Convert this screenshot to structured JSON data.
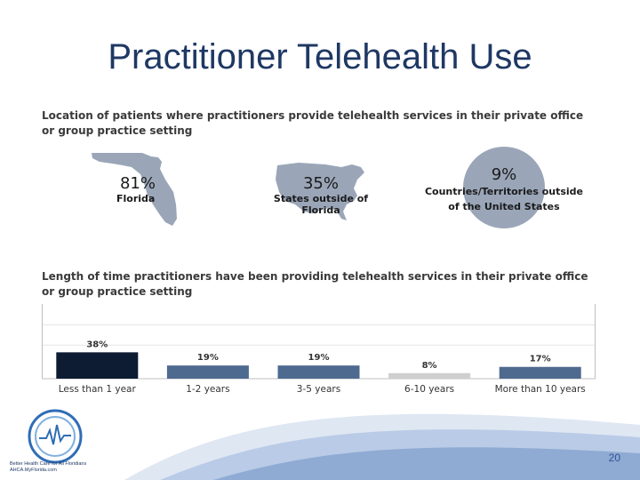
{
  "slide": {
    "title": "Practitioner Telehealth Use",
    "page_number": "20"
  },
  "location_section": {
    "heading": "Location of patients where practitioners provide telehealth services in their private office or group practice setting",
    "stats": [
      {
        "value": "81%",
        "label": "Florida",
        "shape": "florida-map"
      },
      {
        "value": "35%",
        "label": "States outside of Florida",
        "shape": "usa-map"
      },
      {
        "value": "9%",
        "label": "Countries/Territories outside of the United States",
        "shape": "globe-circle"
      }
    ]
  },
  "duration_section": {
    "heading": "Length of time practitioners have been providing telehealth services in their private office or group practice setting"
  },
  "chart_data": {
    "type": "bar",
    "categories": [
      "Less than 1 year",
      "1-2 years",
      "3-5 years",
      "6-10 years",
      "More than 10 years"
    ],
    "values": [
      38,
      19,
      19,
      8,
      17
    ],
    "data_labels": [
      "38%",
      "19%",
      "19%",
      "8%",
      "17%"
    ],
    "ylim": [
      0,
      100
    ],
    "colors": [
      "#0d1b33",
      "#4f6a8f",
      "#4f6a8f",
      "#cfcfcf",
      "#4f6a8f"
    ],
    "grid": true
  },
  "logo": {
    "name": "ahca-seal-icon",
    "tagline": "Better Health Care for All Floridians",
    "sub": "AHCA.MyFlorida.com"
  },
  "colors": {
    "title": "#1f3864",
    "map_fill": "#9aa6b8",
    "wave_light": "#dfe7f3",
    "wave_mid": "#9fb6d9"
  }
}
